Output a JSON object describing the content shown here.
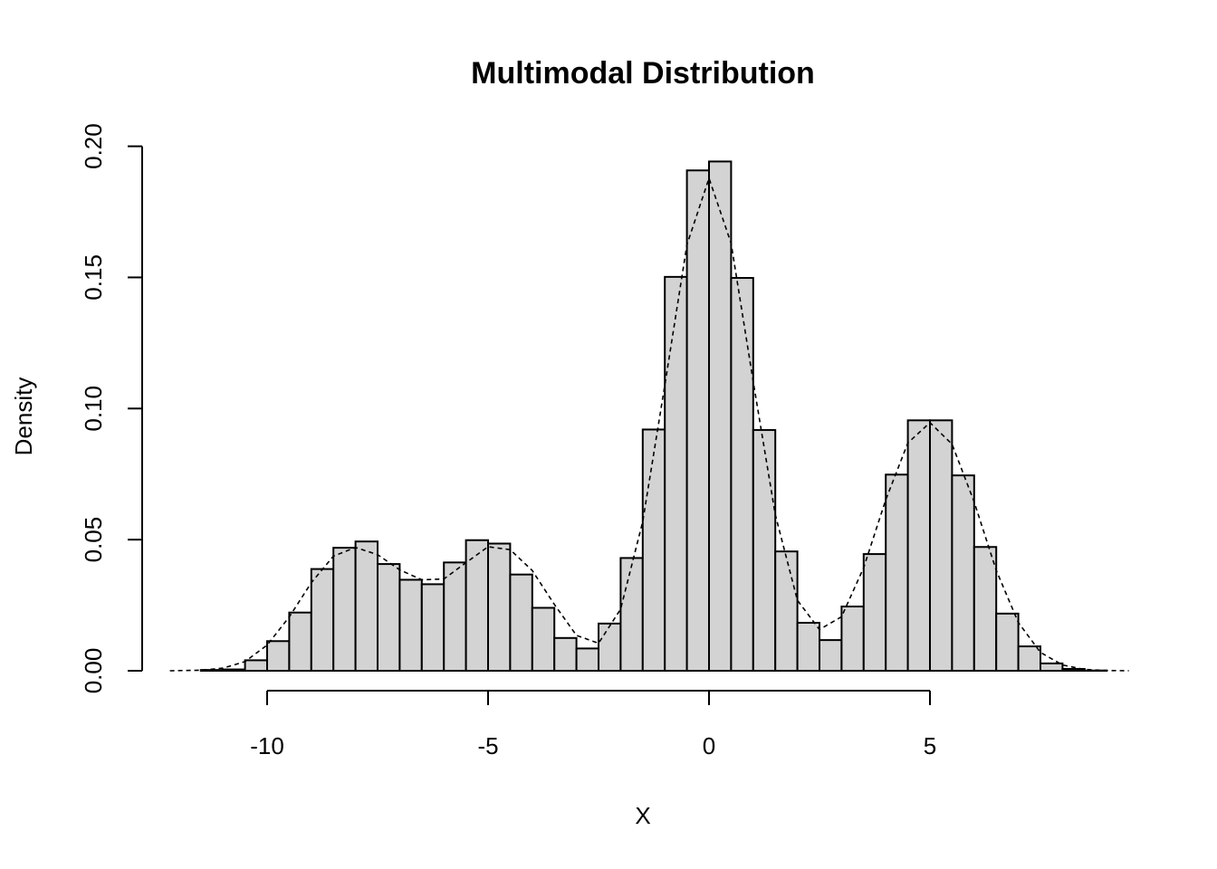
{
  "chart_data": {
    "type": "bar",
    "title": "Multimodal Distribution",
    "xlabel": "X",
    "ylabel": "Density",
    "xlim": [
      -12.2,
      9.5
    ],
    "ylim": [
      0,
      0.2
    ],
    "x_ticks": [
      -10,
      -5,
      0,
      5
    ],
    "x_tick_labels": [
      "-10",
      "-5",
      "0",
      "5"
    ],
    "y_ticks": [
      0,
      0.05,
      0.1,
      0.15,
      0.2
    ],
    "y_tick_labels": [
      "0.00",
      "0.05",
      "0.10",
      "0.15",
      "0.20"
    ],
    "grid": false,
    "legend": "none",
    "bin_width": 0.5,
    "bin_start": -11.5,
    "values": [
      0.0003,
      0.0005,
      0.004,
      0.0113,
      0.0222,
      0.0388,
      0.0469,
      0.0493,
      0.0407,
      0.0347,
      0.033,
      0.0413,
      0.0498,
      0.0485,
      0.0367,
      0.024,
      0.0125,
      0.0085,
      0.018,
      0.043,
      0.092,
      0.1502,
      0.1908,
      0.1942,
      0.1498,
      0.0918,
      0.0455,
      0.0183,
      0.0117,
      0.0245,
      0.0445,
      0.0748,
      0.0955,
      0.0955,
      0.0745,
      0.0472,
      0.0218,
      0.0093,
      0.0028,
      0.0007,
      0.0001
    ],
    "series": [
      {
        "type": "line",
        "style": "dashed",
        "x": [
          -12.2,
          -11.5,
          -11,
          -10.5,
          -10,
          -9.5,
          -9,
          -8.5,
          -8,
          -7.5,
          -7,
          -6.5,
          -6,
          -5.5,
          -5,
          -4.5,
          -4,
          -3.5,
          -3,
          -2.5,
          -2,
          -1.5,
          -1,
          -0.5,
          0,
          0.5,
          1,
          1.5,
          2,
          2.5,
          3,
          3.5,
          4,
          4.5,
          5,
          5.5,
          6,
          6.5,
          7,
          7.5,
          8,
          8.5,
          9,
          9.5
        ],
        "y": [
          0,
          0.0002,
          0.001,
          0.0035,
          0.0098,
          0.0205,
          0.0336,
          0.0437,
          0.047,
          0.0443,
          0.0385,
          0.0347,
          0.035,
          0.0412,
          0.0473,
          0.0462,
          0.0382,
          0.0253,
          0.0135,
          0.0105,
          0.0235,
          0.0569,
          0.1089,
          0.1624,
          0.1878,
          0.163,
          0.1103,
          0.0595,
          0.0269,
          0.0157,
          0.0206,
          0.0393,
          0.0652,
          0.0869,
          0.0946,
          0.0864,
          0.0644,
          0.0383,
          0.0184,
          0.007,
          0.0022,
          0.0005,
          0.0001,
          0
        ]
      }
    ]
  }
}
